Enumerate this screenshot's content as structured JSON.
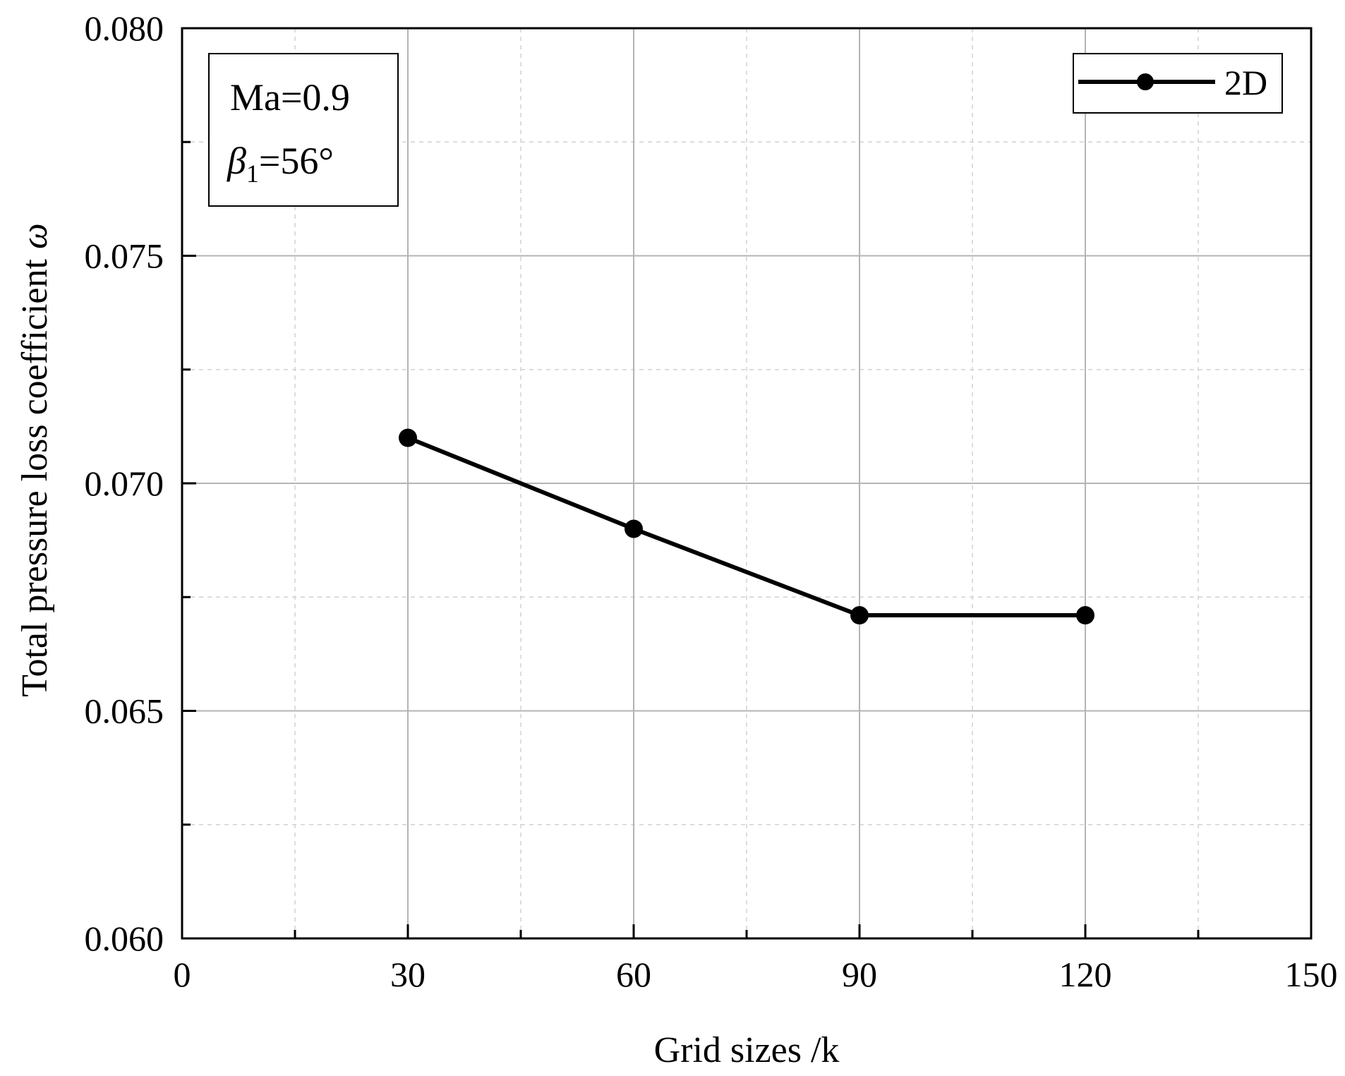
{
  "chart_data": {
    "type": "line",
    "xlabel": "Grid sizes /k",
    "ylabel": "Total pressure loss coefficient",
    "ylabel_symbol": "ω",
    "xlim": [
      0,
      150
    ],
    "ylim": [
      0.06,
      0.08
    ],
    "x_ticks": [
      0,
      30,
      60,
      90,
      120,
      150
    ],
    "x_tick_labels": [
      "0",
      "30",
      "60",
      "90",
      "120",
      "150"
    ],
    "x_minor_ticks": [
      15,
      45,
      75,
      105,
      135
    ],
    "y_ticks": [
      0.06,
      0.065,
      0.07,
      0.075,
      0.08
    ],
    "y_tick_labels": [
      "0.060",
      "0.065",
      "0.070",
      "0.075",
      "0.080"
    ],
    "y_minor_ticks": [
      0.0625,
      0.0675,
      0.0725,
      0.0775
    ],
    "grid": true,
    "series": [
      {
        "name": "2D",
        "color": "#000000",
        "marker": "circle",
        "x": [
          30,
          60,
          90,
          120
        ],
        "values": [
          0.071,
          0.069,
          0.0671,
          0.0671
        ]
      }
    ],
    "legend": {
      "position": "top-right",
      "entries": [
        "2D"
      ]
    },
    "annotation": {
      "line1": "Ma=0.9",
      "line2_symbol": "β",
      "line2_subscript": "1",
      "line2_rest": "=56°"
    }
  },
  "colors": {
    "axis": "#000000",
    "major_grid": "#b4b4b4",
    "minor_grid": "#d2d2d2",
    "series": "#000000"
  }
}
